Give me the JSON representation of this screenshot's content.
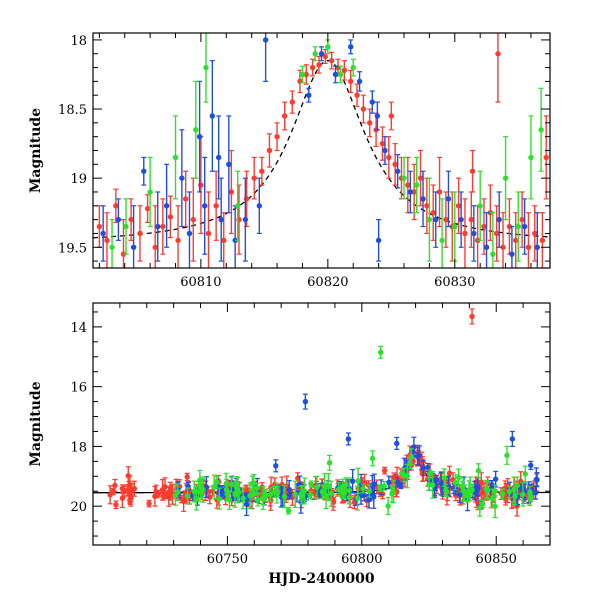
{
  "chart_data": [
    {
      "id": "top",
      "type": "scatter",
      "title": "",
      "xlabel": "",
      "ylabel": "Magnitude",
      "xlim": [
        60801.5,
        60837.5
      ],
      "ylim": [
        19.65,
        17.95
      ],
      "y_inverted": true,
      "xticks": [
        60810,
        60820,
        60830
      ],
      "xticks_minor_step": 2,
      "yticks": [
        18,
        18.5,
        19,
        19.5
      ],
      "yticks_minor_step": 0.1,
      "model_curve": {
        "type": "line",
        "color": "#000000",
        "style": "dashed",
        "peak_x": 60820.0,
        "peak_y": 18.15,
        "baseline_y": 19.48,
        "width": 3.6
      },
      "series": [
        {
          "color": "#ff3b2f",
          "points": [
            [
              60802.0,
              19.35,
              0.15
            ],
            [
              60802.6,
              19.45,
              0.2
            ],
            [
              60803.3,
              19.2,
              0.12
            ],
            [
              60803.9,
              19.55,
              0.25
            ],
            [
              60804.5,
              19.3,
              0.15
            ],
            [
              60805.2,
              19.4,
              0.2
            ],
            [
              60805.8,
              19.22,
              0.1
            ],
            [
              60806.4,
              19.5,
              0.3
            ],
            [
              60807.0,
              19.35,
              0.2
            ],
            [
              60807.6,
              19.28,
              0.15
            ],
            [
              60808.2,
              19.45,
              0.25
            ],
            [
              60808.8,
              19.15,
              0.2
            ],
            [
              60809.4,
              19.3,
              0.3
            ],
            [
              60810.0,
              19.05,
              0.35
            ],
            [
              60810.6,
              19.4,
              0.3
            ],
            [
              60811.2,
              19.2,
              0.25
            ],
            [
              60811.8,
              19.45,
              0.2
            ],
            [
              60812.4,
              19.1,
              0.3
            ],
            [
              60813.0,
              19.3,
              0.25
            ],
            [
              60813.6,
              19.15,
              0.2
            ],
            [
              60814.2,
              19.0,
              0.15
            ],
            [
              60814.8,
              18.95,
              0.1
            ],
            [
              60815.4,
              18.8,
              0.12
            ],
            [
              60816.0,
              18.7,
              0.1
            ],
            [
              60816.6,
              18.55,
              0.1
            ],
            [
              60817.2,
              18.45,
              0.08
            ],
            [
              60817.8,
              18.3,
              0.08
            ],
            [
              60818.3,
              18.25,
              0.07
            ],
            [
              60818.8,
              18.2,
              0.06
            ],
            [
              60819.3,
              18.18,
              0.06
            ],
            [
              60819.8,
              18.12,
              0.05
            ],
            [
              60820.3,
              18.15,
              0.06
            ],
            [
              60820.8,
              18.2,
              0.06
            ],
            [
              60821.3,
              18.22,
              0.07
            ],
            [
              60821.8,
              18.3,
              0.08
            ],
            [
              60822.3,
              18.4,
              0.08
            ],
            [
              60822.8,
              18.5,
              0.1
            ],
            [
              60823.3,
              18.6,
              0.1
            ],
            [
              60823.8,
              18.65,
              0.12
            ],
            [
              60824.3,
              18.75,
              0.12
            ],
            [
              60824.8,
              18.85,
              0.15
            ],
            [
              60825.3,
              18.9,
              0.15
            ],
            [
              60825.8,
              19.0,
              0.15
            ],
            [
              60826.3,
              19.05,
              0.2
            ],
            [
              60826.8,
              19.1,
              0.2
            ],
            [
              60827.3,
              19.0,
              0.2
            ],
            [
              60827.8,
              19.2,
              0.2
            ],
            [
              60828.3,
              19.25,
              0.2
            ],
            [
              60828.8,
              19.1,
              0.25
            ],
            [
              60829.3,
              19.3,
              0.2
            ],
            [
              60829.8,
              19.35,
              0.25
            ],
            [
              60830.3,
              19.2,
              0.2
            ],
            [
              60830.8,
              19.4,
              0.25
            ],
            [
              60831.3,
              19.3,
              0.2
            ],
            [
              60831.8,
              19.45,
              0.25
            ],
            [
              60832.3,
              19.35,
              0.2
            ],
            [
              60832.8,
              19.25,
              0.2
            ],
            [
              60833.3,
              19.4,
              0.2
            ],
            [
              60833.8,
              19.5,
              0.25
            ],
            [
              60834.3,
              19.35,
              0.2
            ],
            [
              60834.8,
              19.45,
              0.2
            ],
            [
              60835.3,
              19.3,
              0.2
            ],
            [
              60835.8,
              19.5,
              0.25
            ],
            [
              60836.3,
              19.4,
              0.2
            ],
            [
              60836.9,
              19.45,
              0.2
            ],
            [
              60833.4,
              18.1,
              0.35
            ],
            [
              60837.2,
              18.85,
              0.3
            ],
            [
              60831.4,
              18.95,
              0.15
            ],
            [
              60825.0,
              18.55,
              0.1
            ]
          ]
        },
        {
          "color": "#1f4fe0",
          "points": [
            [
              60802.3,
              19.4,
              0.2
            ],
            [
              60803.5,
              19.3,
              0.15
            ],
            [
              60804.7,
              19.5,
              0.3
            ],
            [
              60805.5,
              18.95,
              0.1
            ],
            [
              60806.6,
              19.35,
              0.25
            ],
            [
              60807.3,
              19.2,
              0.3
            ],
            [
              60808.5,
              19.0,
              0.35
            ],
            [
              60809.1,
              19.4,
              0.3
            ],
            [
              60809.9,
              18.7,
              0.4
            ],
            [
              60810.3,
              19.2,
              0.35
            ],
            [
              60810.9,
              18.55,
              0.4
            ],
            [
              60811.4,
              18.85,
              0.3
            ],
            [
              60811.6,
              19.3,
              0.3
            ],
            [
              60812.2,
              18.9,
              0.35
            ],
            [
              60812.7,
              19.45,
              0.25
            ],
            [
              60813.5,
              19.3,
              0.3
            ],
            [
              60814.6,
              19.2,
              0.2
            ],
            [
              60815.1,
              18.0,
              0.3
            ],
            [
              60819.5,
              18.1,
              0.05
            ],
            [
              60820.6,
              18.25,
              0.06
            ],
            [
              60822.5,
              18.3,
              0.07
            ],
            [
              60823.5,
              18.45,
              0.08
            ],
            [
              60823.9,
              18.55,
              0.1
            ],
            [
              60824.5,
              18.8,
              0.1
            ],
            [
              60825.5,
              18.95,
              0.12
            ],
            [
              60826.5,
              19.1,
              0.15
            ],
            [
              60827.5,
              19.15,
              0.2
            ],
            [
              60828.5,
              19.3,
              0.2
            ],
            [
              60829.5,
              19.15,
              0.2
            ],
            [
              60830.5,
              19.3,
              0.2
            ],
            [
              60831.5,
              19.4,
              0.2
            ],
            [
              60832.5,
              19.5,
              0.25
            ],
            [
              60833.5,
              19.3,
              0.2
            ],
            [
              60834.5,
              19.55,
              0.2
            ],
            [
              60835.5,
              19.35,
              0.2
            ],
            [
              60836.5,
              19.5,
              0.25
            ],
            [
              60824.0,
              19.45,
              0.15
            ],
            [
              60821.8,
              18.05,
              0.05
            ],
            [
              60818.5,
              18.4,
              0.05
            ]
          ]
        },
        {
          "color": "#2ee02e",
          "points": [
            [
              60803.0,
              19.5,
              0.2
            ],
            [
              60804.1,
              19.35,
              0.2
            ],
            [
              60806.0,
              19.1,
              0.25
            ],
            [
              60808.0,
              18.85,
              0.3
            ],
            [
              60809.6,
              18.65,
              0.35
            ],
            [
              60810.4,
              18.2,
              0.25
            ],
            [
              60812.9,
              19.2,
              0.25
            ],
            [
              60818.0,
              18.25,
              0.06
            ],
            [
              60819.0,
              18.1,
              0.05
            ],
            [
              60820.0,
              18.05,
              0.05
            ],
            [
              60821.0,
              18.25,
              0.06
            ],
            [
              60822.0,
              18.2,
              0.06
            ],
            [
              60826.0,
              19.0,
              0.15
            ],
            [
              60827.0,
              19.05,
              0.2
            ],
            [
              60828.0,
              19.3,
              0.3
            ],
            [
              60829.0,
              19.45,
              0.3
            ],
            [
              60830.0,
              19.35,
              0.25
            ],
            [
              60832.0,
              19.2,
              0.25
            ],
            [
              60833.0,
              19.55,
              0.3
            ],
            [
              60834.0,
              19.0,
              0.3
            ],
            [
              60835.0,
              19.35,
              0.25
            ],
            [
              60836.0,
              18.85,
              0.3
            ],
            [
              60836.8,
              18.65,
              0.3
            ]
          ]
        }
      ]
    },
    {
      "id": "bottom",
      "type": "scatter",
      "title": "",
      "xlabel": "HJD-2400000",
      "ylabel": "Magnitude",
      "xlim": [
        60700,
        60870
      ],
      "ylim": [
        21.3,
        13.2
      ],
      "y_inverted": true,
      "xticks": [
        60750,
        60800,
        60850
      ],
      "xticks_minor_step": 10,
      "yticks": [
        14,
        16,
        18,
        20
      ],
      "yticks_minor_step": 0.5,
      "model_curve": {
        "type": "line",
        "color": "#000000",
        "style": "solid",
        "peak_x": 60820.0,
        "peak_y": 18.2,
        "baseline_y": 19.55,
        "width": 3.6
      },
      "outliers": [
        {
          "color": "#ff3b2f",
          "x": 60841.0,
          "y": 13.65,
          "err": 0.25
        },
        {
          "color": "#2ee02e",
          "x": 60807.0,
          "y": 14.85,
          "err": 0.2
        },
        {
          "color": "#1f4fe0",
          "x": 60779.0,
          "y": 16.5,
          "err": 0.25
        },
        {
          "color": "#1f4fe0",
          "x": 60795.0,
          "y": 17.75,
          "err": 0.2
        },
        {
          "color": "#2ee02e",
          "x": 60788.0,
          "y": 18.55,
          "err": 0.25
        },
        {
          "color": "#1f4fe0",
          "x": 60856.0,
          "y": 17.75,
          "err": 0.25
        },
        {
          "color": "#2ee02e",
          "x": 60854.0,
          "y": 18.3,
          "err": 0.3
        },
        {
          "color": "#1f4fe0",
          "x": 60768.0,
          "y": 18.65,
          "err": 0.2
        },
        {
          "color": "#2ee02e",
          "x": 60804.0,
          "y": 18.4,
          "err": 0.25
        },
        {
          "color": "#1f4fe0",
          "x": 60813.0,
          "y": 17.9,
          "err": 0.2
        }
      ]
    }
  ]
}
